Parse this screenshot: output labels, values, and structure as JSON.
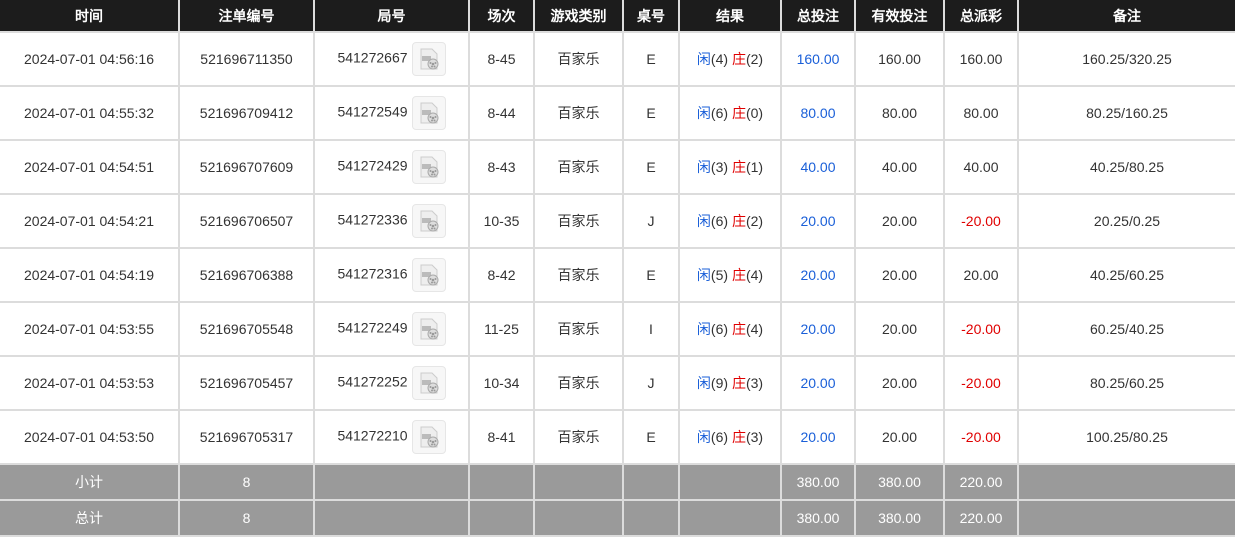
{
  "headers": [
    "时间",
    "注单编号",
    "局号",
    "场次",
    "游戏类别",
    "桌号",
    "结果",
    "总投注",
    "有效投注",
    "总派彩",
    "备注"
  ],
  "colors": {
    "header_bg": "#1c1c1c",
    "player": "#1a5fd8",
    "banker": "#e00000",
    "negative": "#e00000",
    "bet": "#1a5fd8",
    "summary_bg": "#9a9a9a"
  },
  "rows": [
    {
      "time": "2024-07-01 04:56:16",
      "bet_id": "521696711350",
      "round": "541272667",
      "shoe": "8-45",
      "game": "百家乐",
      "table": "E",
      "player": "闲",
      "player_pts": "(4)",
      "banker": "庄",
      "banker_pts": "(2)",
      "total_bet": "160.00",
      "valid_bet": "160.00",
      "payout": "160.00",
      "note": "160.25/320.25"
    },
    {
      "time": "2024-07-01 04:55:32",
      "bet_id": "521696709412",
      "round": "541272549",
      "shoe": "8-44",
      "game": "百家乐",
      "table": "E",
      "player": "闲",
      "player_pts": "(6)",
      "banker": "庄",
      "banker_pts": "(0)",
      "total_bet": "80.00",
      "valid_bet": "80.00",
      "payout": "80.00",
      "note": "80.25/160.25"
    },
    {
      "time": "2024-07-01 04:54:51",
      "bet_id": "521696707609",
      "round": "541272429",
      "shoe": "8-43",
      "game": "百家乐",
      "table": "E",
      "player": "闲",
      "player_pts": "(3)",
      "banker": "庄",
      "banker_pts": "(1)",
      "total_bet": "40.00",
      "valid_bet": "40.00",
      "payout": "40.00",
      "note": "40.25/80.25"
    },
    {
      "time": "2024-07-01 04:54:21",
      "bet_id": "521696706507",
      "round": "541272336",
      "shoe": "10-35",
      "game": "百家乐",
      "table": "J",
      "player": "闲",
      "player_pts": "(6)",
      "banker": "庄",
      "banker_pts": "(2)",
      "total_bet": "20.00",
      "valid_bet": "20.00",
      "payout": "-20.00",
      "note": "20.25/0.25"
    },
    {
      "time": "2024-07-01 04:54:19",
      "bet_id": "521696706388",
      "round": "541272316",
      "shoe": "8-42",
      "game": "百家乐",
      "table": "E",
      "player": "闲",
      "player_pts": "(5)",
      "banker": "庄",
      "banker_pts": "(4)",
      "total_bet": "20.00",
      "valid_bet": "20.00",
      "payout": "20.00",
      "note": "40.25/60.25"
    },
    {
      "time": "2024-07-01 04:53:55",
      "bet_id": "521696705548",
      "round": "541272249",
      "shoe": "11-25",
      "game": "百家乐",
      "table": "I",
      "player": "闲",
      "player_pts": "(6)",
      "banker": "庄",
      "banker_pts": "(4)",
      "total_bet": "20.00",
      "valid_bet": "20.00",
      "payout": "-20.00",
      "note": "60.25/40.25"
    },
    {
      "time": "2024-07-01 04:53:53",
      "bet_id": "521696705457",
      "round": "541272252",
      "shoe": "10-34",
      "game": "百家乐",
      "table": "J",
      "player": "闲",
      "player_pts": "(9)",
      "banker": "庄",
      "banker_pts": "(3)",
      "total_bet": "20.00",
      "valid_bet": "20.00",
      "payout": "-20.00",
      "note": "80.25/60.25"
    },
    {
      "time": "2024-07-01 04:53:50",
      "bet_id": "521696705317",
      "round": "541272210",
      "shoe": "8-41",
      "game": "百家乐",
      "table": "E",
      "player": "闲",
      "player_pts": "(6)",
      "banker": "庄",
      "banker_pts": "(3)",
      "total_bet": "20.00",
      "valid_bet": "20.00",
      "payout": "-20.00",
      "note": "100.25/80.25"
    }
  ],
  "summary": [
    {
      "label": "小计",
      "count": "8",
      "total_bet": "380.00",
      "valid_bet": "380.00",
      "payout": "220.00"
    },
    {
      "label": "总计",
      "count": "8",
      "total_bet": "380.00",
      "valid_bet": "380.00",
      "payout": "220.00"
    }
  ]
}
